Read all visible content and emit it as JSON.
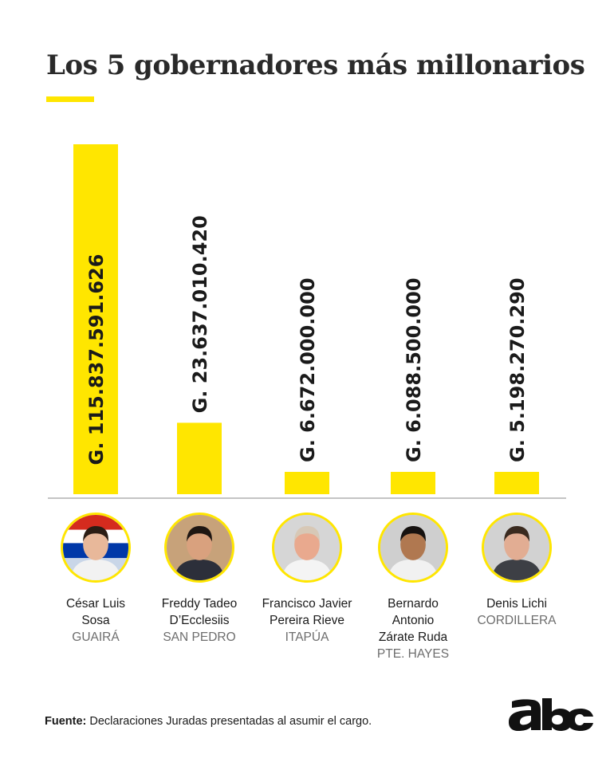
{
  "title": "Los 5 gobernadores más millonarios",
  "colors": {
    "bar": "#ffe600",
    "accent": "#ffe600",
    "text": "#1a1a1a",
    "region": "#6d6d6d"
  },
  "chart_data": {
    "type": "bar",
    "orientation": "vertical",
    "categories": [
      "César Luis Sosa",
      "Freddy Tadeo D’Ecclesiis",
      "Francisco Javier Pereira Rieve",
      "Bernardo Antonio Zárate Ruda",
      "Denis Lichi"
    ],
    "values": [
      115837591626,
      23637010420,
      6672000000,
      6088500000,
      5198270290
    ],
    "value_labels": [
      "G. 115.837.591.626",
      "G. 23.637.010.420",
      "G. 6.672.000.000",
      "G. 6.088.500.000",
      "G. 5.198.270.290"
    ],
    "title": "Los 5 gobernadores más millonarios",
    "ylim": [
      0,
      115837591626
    ],
    "grid": false
  },
  "people": [
    {
      "name_lines": [
        "César Luis",
        "Sosa"
      ],
      "region": "GUAIRÁ",
      "icon": "person-photo-icon"
    },
    {
      "name_lines": [
        "Freddy Tadeo",
        "D’Ecclesiis"
      ],
      "region": "SAN PEDRO",
      "icon": "person-photo-icon"
    },
    {
      "name_lines": [
        "Francisco Javier",
        "Pereira Rieve"
      ],
      "region": "ITAPÚA",
      "icon": "person-photo-icon"
    },
    {
      "name_lines": [
        "Bernardo",
        "Antonio",
        "Zárate Ruda"
      ],
      "region": "PTE. HAYES",
      "icon": "person-photo-icon"
    },
    {
      "name_lines": [
        "Denis Lichi"
      ],
      "region": "CORDILLERA",
      "icon": "person-photo-icon"
    }
  ],
  "source": {
    "label": "Fuente:",
    "text": "Declaraciones Juradas presentadas al asumir el cargo."
  },
  "logo": {
    "text": "abc"
  }
}
